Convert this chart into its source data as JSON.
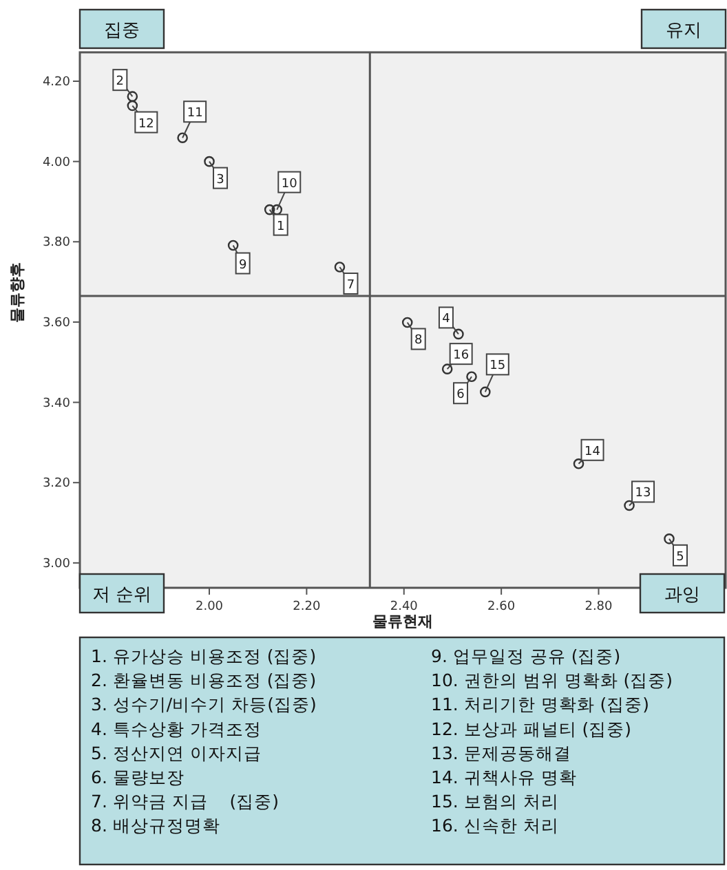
{
  "chart_data": {
    "type": "scatter",
    "xlabel": "물류현재",
    "ylabel": "물류향후",
    "x": [
      2.124,
      1.842,
      2.0,
      2.512,
      2.945,
      2.539,
      2.268,
      2.407,
      2.049,
      2.139,
      1.945,
      1.842,
      2.863,
      2.759,
      2.567,
      2.489
    ],
    "series": [
      {
        "color": "#333333",
        "values": [
          3.88,
          4.162,
          4.0,
          3.57,
          3.06,
          3.464,
          3.737,
          3.599,
          3.791,
          3.88,
          4.059,
          4.139,
          3.143,
          3.247,
          3.426,
          3.483
        ]
      }
    ],
    "marker": "circle",
    "grid": false,
    "xlim": [
      1.734,
      3.061
    ],
    "ylim": [
      2.938,
      4.272
    ],
    "xticks": [
      {
        "value": 2,
        "label": "2.00"
      },
      {
        "value": 2.2,
        "label": "2.20"
      },
      {
        "value": 2.4,
        "label": "2.40"
      },
      {
        "value": 2.6,
        "label": "2.60"
      },
      {
        "value": 2.8,
        "label": "2.80"
      }
    ],
    "yticks": [
      {
        "value": 3,
        "label": "3.00"
      },
      {
        "value": 3.2,
        "label": "3.20"
      },
      {
        "value": 3.4,
        "label": "3.40"
      },
      {
        "value": 3.6,
        "label": "3.60"
      },
      {
        "value": 3.8,
        "label": "3.80"
      },
      {
        "value": 4,
        "label": "4.00"
      },
      {
        "value": 4.2,
        "label": "4.20"
      }
    ],
    "ref_lines": [
      {
        "axis": "x",
        "value": 2.33
      },
      {
        "axis": "y",
        "value": 3.665
      }
    ],
    "annotations": [
      "집중",
      "유지",
      "저 순위",
      "과잉",
      "1. 유가상승 비용조정 (집중)",
      "2. 환율변동 비용조정 (집중)",
      "3. 성수기/비수기 차등(집중)",
      "4. 특수상황 가격조정",
      "5. 정산지연 이자지급",
      "6. 물량보장",
      "7. 위약금 지급    (집중)",
      "8. 배상규정명확",
      "9. 업무일정 공유 (집중)",
      "10. 권한의 범위 명확화 (집중)",
      "11. 처리기한 명확화 (집중)",
      "12. 보상과 패널티 (집중)",
      "13. 문제공동해결",
      "14. 귀책사유 명확",
      "15. 보험의 처리",
      "16. 신속한 처리",
      {
        "text": "1",
        "x": 2.124,
        "y": 3.88
      },
      {
        "text": "2",
        "x": 1.842,
        "y": 4.162
      },
      {
        "text": "3",
        "x": 2.0,
        "y": 4.0
      },
      {
        "text": "4",
        "x": 2.512,
        "y": 3.57
      },
      {
        "text": "5",
        "x": 2.945,
        "y": 3.06
      },
      {
        "text": "6",
        "x": 2.539,
        "y": 3.464
      },
      {
        "text": "7",
        "x": 2.268,
        "y": 3.737
      },
      {
        "text": "8",
        "x": 2.407,
        "y": 3.599
      },
      {
        "text": "9",
        "x": 2.049,
        "y": 3.791
      },
      {
        "text": "10",
        "x": 2.139,
        "y": 3.88
      },
      {
        "text": "11",
        "x": 1.945,
        "y": 4.059
      },
      {
        "text": "12",
        "x": 1.842,
        "y": 4.139
      },
      {
        "text": "13",
        "x": 2.863,
        "y": 3.143
      },
      {
        "text": "14",
        "x": 2.759,
        "y": 3.247
      },
      {
        "text": "15",
        "x": 2.567,
        "y": 3.426
      },
      {
        "text": "16",
        "x": 2.489,
        "y": 3.483
      }
    ]
  }
}
